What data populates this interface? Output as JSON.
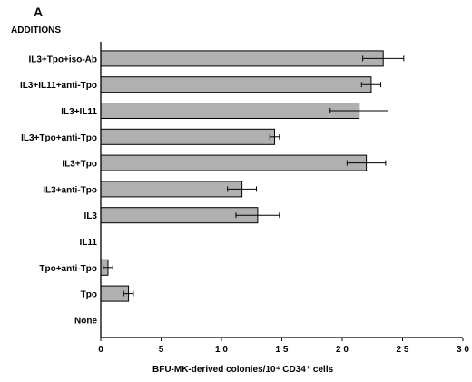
{
  "panel_letter": "A",
  "chart_data": {
    "type": "bar",
    "orientation": "horizontal",
    "header": "ADDITIONS",
    "categories": [
      "IL3+Tpo+iso-Ab",
      "IL3+IL11+anti-Tpo",
      "IL3+IL11",
      "IL3+Tpo+anti-Tpo",
      "IL3+Tpo",
      "IL3+anti-Tpo",
      "IL3",
      "IL11",
      "Tpo+anti-Tpo",
      "Tpo",
      "None"
    ],
    "values": [
      23.4,
      22.4,
      21.4,
      14.4,
      22.0,
      11.7,
      13.0,
      0,
      0.6,
      2.3,
      0
    ],
    "errors": [
      1.7,
      0.8,
      2.4,
      0.4,
      1.6,
      1.2,
      1.8,
      0,
      0.4,
      0.4,
      0
    ],
    "xlim": [
      0,
      30
    ],
    "xticks": [
      "0",
      "5",
      "1 0",
      "1 5",
      "2 0",
      "2 5",
      "3 0"
    ],
    "xtick_values": [
      0,
      5,
      10,
      15,
      20,
      25,
      30
    ],
    "xlabel": "BFU-MK-derived  colonies/10⁴ CD34⁺ cells",
    "bar_color": "#b0b0b0",
    "grid": false
  }
}
